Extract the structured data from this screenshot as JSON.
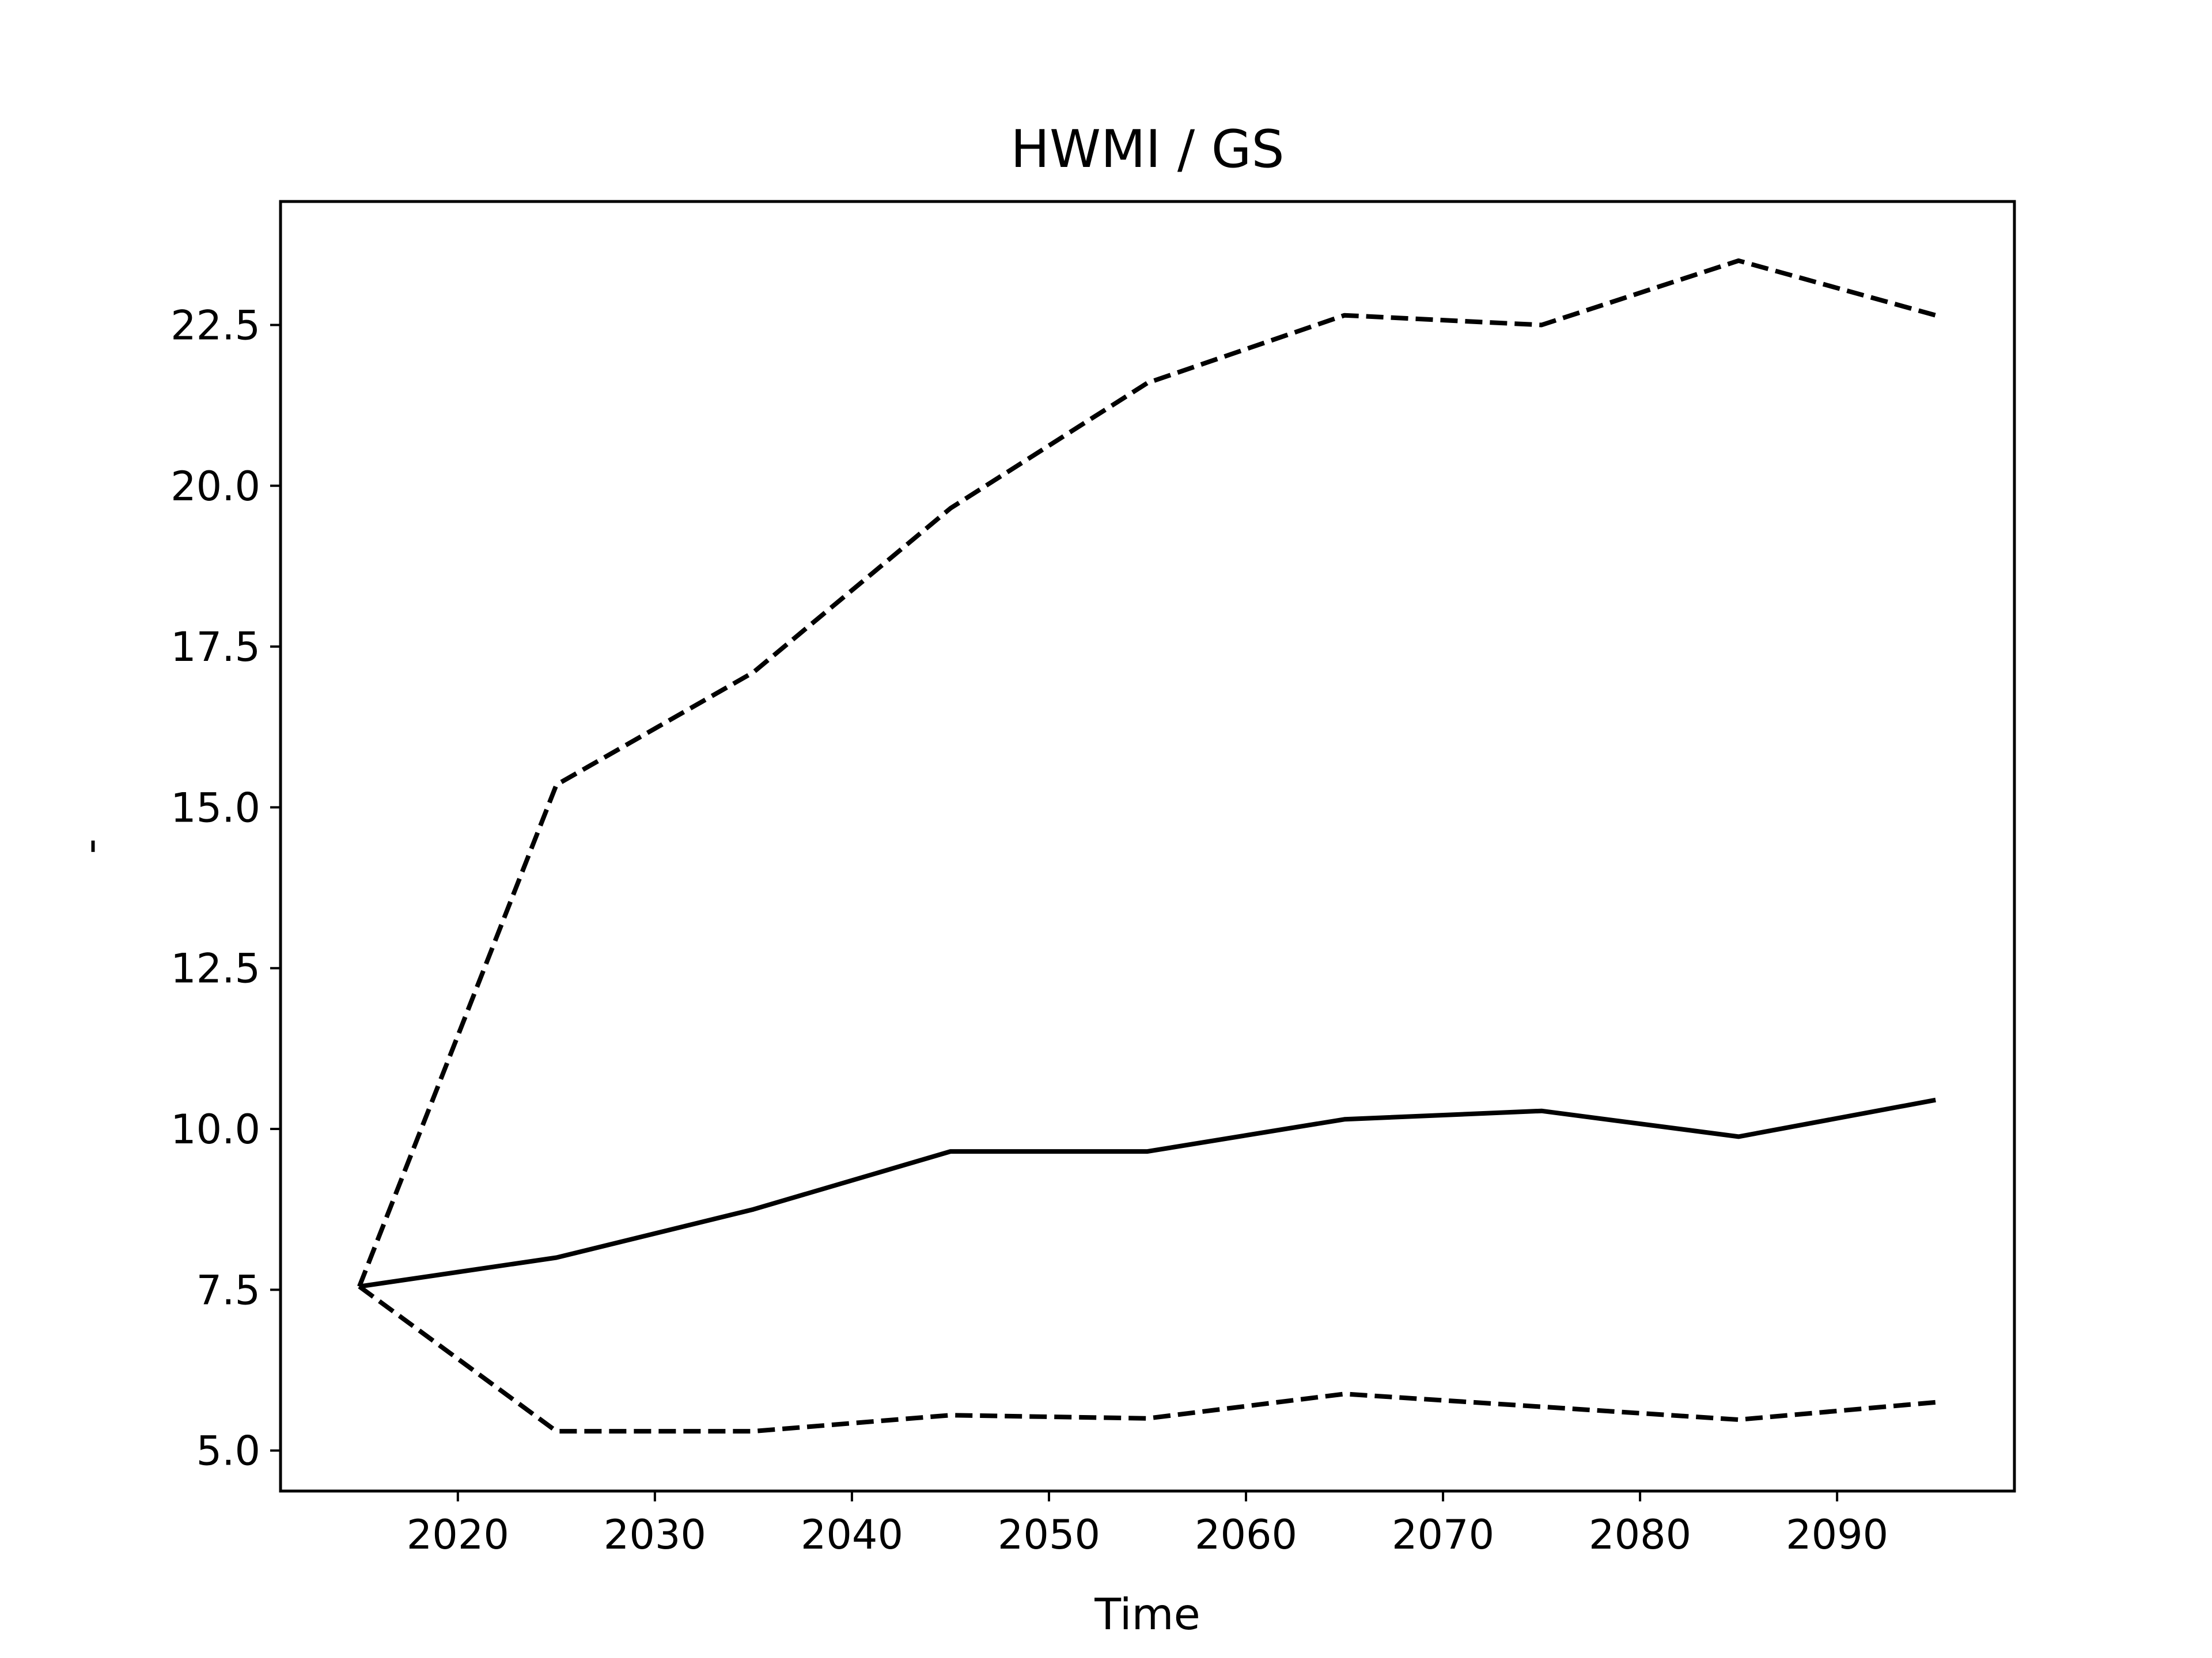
{
  "chart_data": {
    "type": "line",
    "title": "HWMI / GS",
    "xlabel": "Time",
    "ylabel": "-",
    "x": [
      2015,
      2025,
      2035,
      2045,
      2055,
      2065,
      2075,
      2085,
      2095
    ],
    "series": [
      {
        "values": [
          7.55,
          8.0,
          8.75,
          9.65,
          9.65,
          10.15,
          10.28,
          9.88,
          10.45
        ],
        "style": "solid",
        "color": "#000000"
      },
      {
        "values": [
          7.55,
          15.35,
          17.1,
          19.65,
          21.6,
          22.65,
          22.5,
          23.5,
          22.65
        ],
        "style": "dashed",
        "color": "#000000"
      },
      {
        "values": [
          7.55,
          5.3,
          5.3,
          5.55,
          5.5,
          5.88,
          5.68,
          5.48,
          5.75
        ],
        "style": "dashed",
        "color": "#000000"
      }
    ],
    "xlim": [
      2011,
      2099
    ],
    "ylim": [
      4.37,
      24.42
    ],
    "xticks": [
      2020,
      2030,
      2040,
      2050,
      2060,
      2070,
      2080,
      2090
    ],
    "yticks": [
      5.0,
      7.5,
      10.0,
      12.5,
      15.0,
      17.5,
      20.0,
      22.5
    ],
    "xtick_labels": [
      "2020",
      "2030",
      "2040",
      "2050",
      "2060",
      "2070",
      "2080",
      "2090"
    ],
    "ytick_labels": [
      "5.0",
      "7.5",
      "10.0",
      "12.5",
      "15.0",
      "17.5",
      "20.0",
      "22.5"
    ],
    "grid": false,
    "legend": "none"
  }
}
